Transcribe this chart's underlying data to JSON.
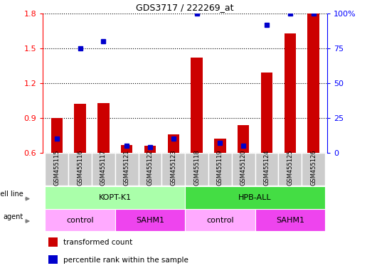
{
  "title": "GDS3717 / 222269_at",
  "samples": [
    "GSM455115",
    "GSM455116",
    "GSM455117",
    "GSM455121",
    "GSM455122",
    "GSM455123",
    "GSM455118",
    "GSM455119",
    "GSM455120",
    "GSM455124",
    "GSM455125",
    "GSM455126"
  ],
  "transformed_count": [
    0.9,
    1.02,
    1.03,
    0.67,
    0.66,
    0.76,
    1.42,
    0.72,
    0.84,
    1.29,
    1.63,
    1.8
  ],
  "percentile_rank": [
    10,
    75,
    80,
    5,
    4,
    10,
    100,
    7,
    5,
    92,
    100,
    100
  ],
  "ylim_left": [
    0.6,
    1.8
  ],
  "ylim_right": [
    0,
    100
  ],
  "yticks_left": [
    0.6,
    0.9,
    1.2,
    1.5,
    1.8
  ],
  "yticks_right": [
    0,
    25,
    50,
    75,
    100
  ],
  "cell_line_groups": [
    {
      "label": "KOPT-K1",
      "start": 0,
      "end": 6,
      "color": "#AAFFAA"
    },
    {
      "label": "HPB-ALL",
      "start": 6,
      "end": 12,
      "color": "#44DD44"
    }
  ],
  "agent_groups": [
    {
      "label": "control",
      "start": 0,
      "end": 3,
      "color": "#FFAAFF"
    },
    {
      "label": "SAHM1",
      "start": 3,
      "end": 6,
      "color": "#EE44EE"
    },
    {
      "label": "control",
      "start": 6,
      "end": 9,
      "color": "#FFAAFF"
    },
    {
      "label": "SAHM1",
      "start": 9,
      "end": 12,
      "color": "#EE44EE"
    }
  ],
  "bar_color_red": "#CC0000",
  "bar_color_blue": "#0000CC",
  "bar_width": 0.5,
  "bg_color": "#E8E8E8",
  "legend_items": [
    {
      "label": "transformed count",
      "color": "#CC0000"
    },
    {
      "label": "percentile rank within the sample",
      "color": "#0000CC"
    }
  ]
}
